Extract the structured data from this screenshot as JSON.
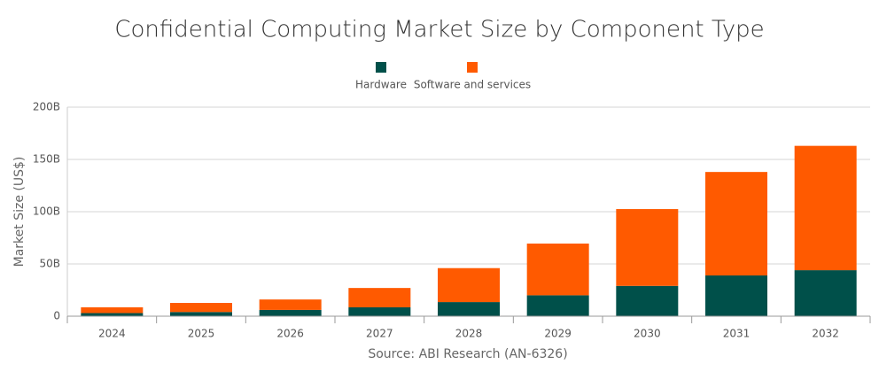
{
  "chart_data": {
    "type": "stacked-bar",
    "title": "Confidential Computing Market Size by Component Type",
    "y_axis_label": "Market Size (US$)",
    "source": "Source: ABI Research (AN-6326)",
    "categories": [
      "2024",
      "2025",
      "2026",
      "2027",
      "2028",
      "2029",
      "2030",
      "2031",
      "2032"
    ],
    "series": [
      {
        "name": "Hardware",
        "color": "#00504a",
        "values": [
          3,
          4,
          6,
          8.5,
          13.5,
          20,
          29,
          39,
          44
        ]
      },
      {
        "name": "Software and services",
        "color": "#ff5a00",
        "values": [
          5.5,
          8.7,
          10,
          18.5,
          32.5,
          49.5,
          73.5,
          99,
          119
        ]
      }
    ],
    "ylim": [
      0,
      200
    ],
    "yticks": [
      0,
      {
        "value": 50,
        "label": "50B"
      },
      {
        "value": 100,
        "label": "100B"
      },
      {
        "value": 150,
        "label": "150B"
      },
      {
        "value": 200,
        "label": "200B"
      }
    ],
    "grid": true
  }
}
